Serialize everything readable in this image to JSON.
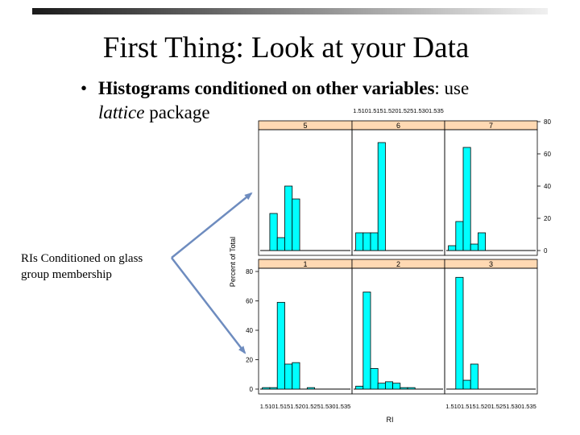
{
  "slide": {
    "title": "First Thing: Look at your Data",
    "bullet_bold": "Histograms conditioned on other variables",
    "bullet_rest": ": use",
    "bullet_italic": "lattice",
    "bullet_tail": " package",
    "side_note_line1": "RIs Conditioned on glass",
    "side_note_line2": "group membership"
  },
  "colors": {
    "strip": "#ffd9b3",
    "bar_fill": "#00ffff",
    "bar_stroke": "#000000",
    "arrow": "#6e8cbf",
    "topbar_dark": "#1a1a1a",
    "topbar_light": "#f0f0f0"
  },
  "chart_data": {
    "type": "bar",
    "xlabel": "RI",
    "ylabel": "Percent of Total",
    "xlim": [
      1.51,
      1.535
    ],
    "yticks": [
      0,
      20,
      40,
      60,
      80
    ],
    "x_tick_labels_top": "1.5101.5151.5201.5251.5301.535",
    "x_tick_labels_bottom_left": "1.5101.5151.5201.5251.5301.535",
    "x_tick_labels_bottom_right": "1.5101.5151.5201.5251.5301.535",
    "bin_edges": [
      1.511,
      1.513,
      1.515,
      1.517,
      1.519,
      1.521,
      1.523,
      1.525,
      1.527,
      1.529,
      1.531,
      1.533,
      1.535
    ],
    "panels": [
      {
        "label": "5",
        "row": 0,
        "col": 0,
        "values": [
          0,
          23,
          8,
          40,
          32,
          0,
          0,
          0,
          0,
          0,
          0,
          0
        ]
      },
      {
        "label": "6",
        "row": 0,
        "col": 1,
        "values": [
          11,
          11,
          11,
          67,
          0,
          0,
          0,
          0,
          0,
          0,
          0,
          0
        ]
      },
      {
        "label": "7",
        "row": 0,
        "col": 2,
        "values": [
          3,
          18,
          64,
          4,
          11,
          0,
          0,
          0,
          0,
          0,
          0,
          0
        ]
      },
      {
        "label": "1",
        "row": 1,
        "col": 0,
        "values": [
          1,
          1,
          59,
          17,
          18,
          0,
          1,
          0,
          0,
          0,
          0,
          0
        ]
      },
      {
        "label": "2",
        "row": 1,
        "col": 1,
        "values": [
          2,
          66,
          14,
          4,
          5,
          4,
          1,
          1,
          0,
          0,
          0,
          0
        ]
      },
      {
        "label": "3",
        "row": 1,
        "col": 2,
        "values": [
          0,
          76,
          6,
          17,
          0,
          0,
          0,
          0,
          0,
          0,
          0,
          0
        ]
      }
    ]
  }
}
